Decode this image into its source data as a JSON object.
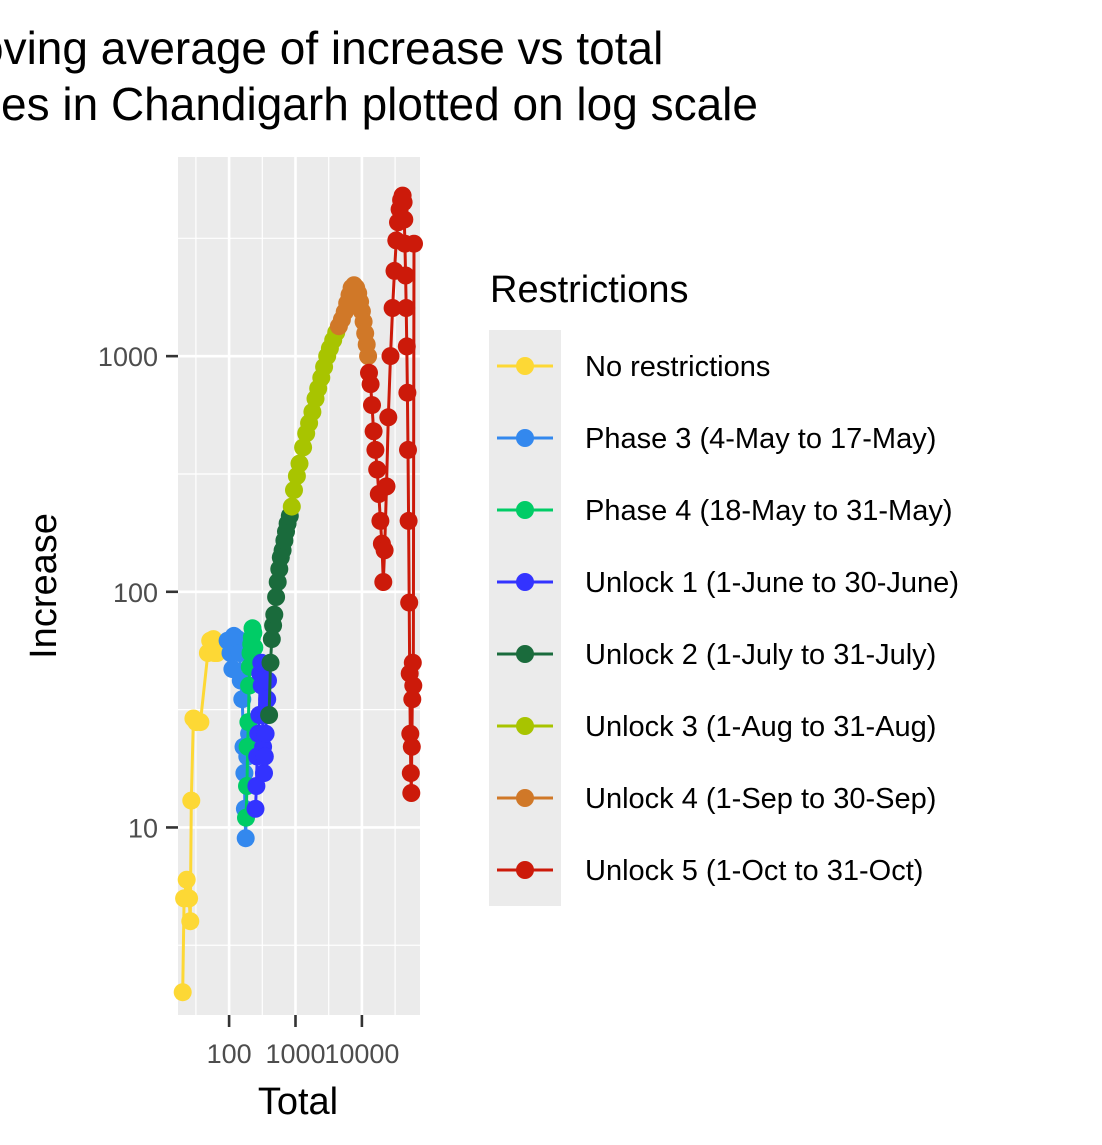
{
  "chart_data": {
    "type": "scatter",
    "title_lines": [
      "oving average of increase vs total",
      "ses in Chandigarh plotted on log scale"
    ],
    "xlabel": "Total",
    "ylabel": "Increase",
    "x_scale": "log10",
    "y_scale": "log10",
    "xlim": [
      17,
      75000
    ],
    "ylim": [
      1.6,
      7000
    ],
    "x_ticks": [
      {
        "value": 100,
        "label": "100"
      },
      {
        "value": 1000,
        "label": "1000"
      },
      {
        "value": 10000,
        "label": "10000"
      }
    ],
    "y_ticks": [
      {
        "value": 10,
        "label": "10"
      },
      {
        "value": 100,
        "label": "100"
      },
      {
        "value": 1000,
        "label": "1000"
      }
    ],
    "grid": true,
    "legend": {
      "title": "Restrictions",
      "position": "right"
    },
    "series": [
      {
        "name": "No restrictions",
        "color": "#fdd835",
        "points": [
          [
            20,
            2
          ],
          [
            21,
            5
          ],
          [
            23,
            6
          ],
          [
            25,
            5
          ],
          [
            26,
            4
          ],
          [
            27,
            13
          ],
          [
            29,
            29
          ],
          [
            32,
            28
          ],
          [
            37,
            28
          ],
          [
            48,
            55
          ],
          [
            52,
            62
          ],
          [
            58,
            63
          ],
          [
            60,
            55
          ],
          [
            66,
            55
          ]
        ]
      },
      {
        "name": "Phase 3 (4-May to 17-May)",
        "color": "#3388ee",
        "points": [
          [
            95,
            62
          ],
          [
            105,
            55
          ],
          [
            112,
            47
          ],
          [
            118,
            65
          ],
          [
            125,
            60
          ],
          [
            135,
            63
          ],
          [
            145,
            55
          ],
          [
            150,
            42
          ],
          [
            158,
            35
          ],
          [
            165,
            22
          ],
          [
            170,
            17
          ],
          [
            173,
            12
          ],
          [
            178,
            9
          ],
          [
            188,
            20
          ],
          [
            200,
            25
          ]
        ]
      },
      {
        "name": "Phase 4 (18-May to 31-May)",
        "color": "#00cc66",
        "points": [
          [
            180,
            11
          ],
          [
            186,
            15
          ],
          [
            190,
            22
          ],
          [
            195,
            28
          ],
          [
            200,
            40
          ],
          [
            205,
            48
          ],
          [
            210,
            55
          ],
          [
            215,
            60
          ],
          [
            220,
            64
          ],
          [
            225,
            70
          ],
          [
            232,
            67
          ],
          [
            240,
            58
          ],
          [
            245,
            50
          ]
        ]
      },
      {
        "name": "Unlock 1 (1-June to 30-June)",
        "color": "#3333ff",
        "points": [
          [
            250,
            12
          ],
          [
            258,
            15
          ],
          [
            265,
            20
          ],
          [
            275,
            25
          ],
          [
            285,
            30
          ],
          [
            295,
            45
          ],
          [
            305,
            50
          ],
          [
            310,
            40
          ],
          [
            318,
            30
          ],
          [
            325,
            22
          ],
          [
            335,
            17
          ],
          [
            345,
            20
          ],
          [
            355,
            25
          ],
          [
            365,
            30
          ],
          [
            375,
            35
          ],
          [
            385,
            42
          ]
        ]
      },
      {
        "name": "Unlock 2 (1-July to 31-July)",
        "color": "#1a6b3c",
        "points": [
          [
            400,
            30
          ],
          [
            420,
            50
          ],
          [
            440,
            63
          ],
          [
            460,
            72
          ],
          [
            480,
            80
          ],
          [
            510,
            95
          ],
          [
            540,
            110
          ],
          [
            570,
            125
          ],
          [
            600,
            140
          ],
          [
            640,
            150
          ],
          [
            680,
            165
          ],
          [
            720,
            180
          ],
          [
            760,
            195
          ],
          [
            820,
            210
          ]
        ]
      },
      {
        "name": "Unlock 3 (1-Aug to 31-Aug)",
        "color": "#a8c400",
        "points": [
          [
            880,
            230
          ],
          [
            950,
            270
          ],
          [
            1050,
            310
          ],
          [
            1150,
            350
          ],
          [
            1300,
            410
          ],
          [
            1450,
            470
          ],
          [
            1600,
            520
          ],
          [
            1800,
            580
          ],
          [
            2000,
            660
          ],
          [
            2200,
            730
          ],
          [
            2450,
            810
          ],
          [
            2700,
            900
          ],
          [
            3000,
            1000
          ],
          [
            3300,
            1080
          ],
          [
            3700,
            1170
          ],
          [
            4100,
            1260
          ]
        ]
      },
      {
        "name": "Unlock 4 (1-Sep to 30-Sep)",
        "color": "#d07828",
        "points": [
          [
            4500,
            1340
          ],
          [
            5000,
            1430
          ],
          [
            5500,
            1540
          ],
          [
            6000,
            1680
          ],
          [
            6500,
            1820
          ],
          [
            7000,
            1950
          ],
          [
            7600,
            2000
          ],
          [
            8200,
            1950
          ],
          [
            8800,
            1850
          ],
          [
            9400,
            1700
          ],
          [
            10000,
            1550
          ],
          [
            10600,
            1400
          ],
          [
            11200,
            1250
          ],
          [
            11800,
            1120
          ],
          [
            12400,
            1000
          ]
        ]
      },
      {
        "name": "Unlock 5 (1-Oct to 31-Oct)",
        "color": "#cc1a0a",
        "points": [
          [
            12800,
            850
          ],
          [
            13500,
            760
          ],
          [
            14200,
            620
          ],
          [
            15000,
            480
          ],
          [
            16000,
            400
          ],
          [
            17000,
            330
          ],
          [
            18000,
            260
          ],
          [
            19000,
            200
          ],
          [
            20000,
            160
          ],
          [
            21000,
            110
          ],
          [
            22000,
            150
          ],
          [
            23500,
            280
          ],
          [
            25000,
            550
          ],
          [
            27000,
            1000
          ],
          [
            29000,
            1600
          ],
          [
            31000,
            2300
          ],
          [
            33000,
            3100
          ],
          [
            35000,
            3700
          ],
          [
            37000,
            4200
          ],
          [
            39000,
            4600
          ],
          [
            41000,
            4800
          ],
          [
            42500,
            4500
          ],
          [
            43500,
            3800
          ],
          [
            44500,
            3000
          ],
          [
            45500,
            2200
          ],
          [
            46500,
            1600
          ],
          [
            47500,
            1100
          ],
          [
            48500,
            700
          ],
          [
            49500,
            400
          ],
          [
            50500,
            200
          ],
          [
            51500,
            90
          ],
          [
            52500,
            45
          ],
          [
            53500,
            25
          ],
          [
            54500,
            17
          ],
          [
            55500,
            14
          ],
          [
            56500,
            22
          ],
          [
            57500,
            35
          ],
          [
            58500,
            50
          ],
          [
            59500,
            40
          ],
          [
            61000,
            3000
          ]
        ]
      }
    ]
  }
}
